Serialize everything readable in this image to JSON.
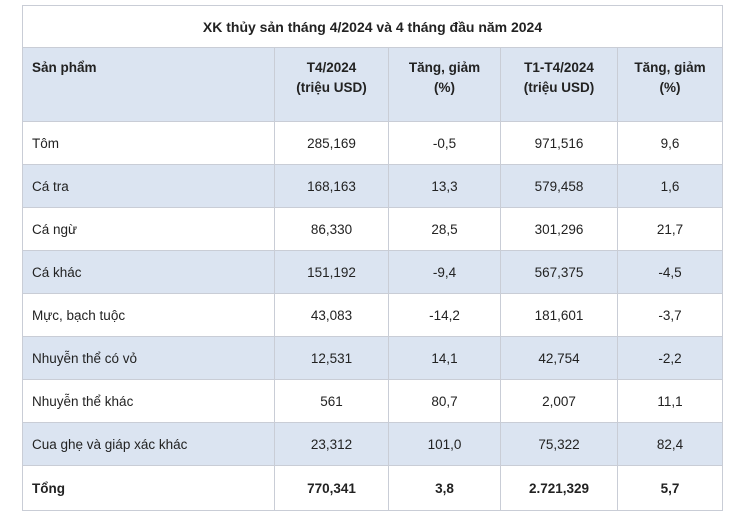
{
  "title": "XK thủy sản tháng 4/2024 và 4 tháng đầu năm 2024",
  "headers": [
    {
      "line1": "Sản phẩm",
      "line2": ""
    },
    {
      "line1": "T4/2024",
      "line2": "(triệu USD)"
    },
    {
      "line1": "Tăng, giảm",
      "line2": "(%)"
    },
    {
      "line1": "T1-T4/2024",
      "line2": "(triệu USD)"
    },
    {
      "line1": "Tăng, giảm",
      "line2": "(%)"
    }
  ],
  "rows": [
    [
      "Tôm",
      "285,169",
      "-0,5",
      "971,516",
      "9,6"
    ],
    [
      "Cá tra",
      "168,163",
      "13,3",
      "579,458",
      "1,6"
    ],
    [
      "Cá ngừ",
      "86,330",
      "28,5",
      "301,296",
      "21,7"
    ],
    [
      "Cá khác",
      "151,192",
      "-9,4",
      "567,375",
      "-4,5"
    ],
    [
      "Mực, bạch tuộc",
      "43,083",
      "-14,2",
      "181,601",
      "-3,7"
    ],
    [
      "Nhuyễn thể có vỏ",
      "12,531",
      "14,1",
      "42,754",
      "-2,2"
    ],
    [
      "Nhuyễn thể khác",
      "561",
      "80,7",
      "2,007",
      "11,1"
    ],
    [
      "Cua ghẹ và giáp xác khác",
      "23,312",
      "101,0",
      "75,322",
      "82,4"
    ]
  ],
  "total": [
    "Tổng",
    "770,341",
    "3,8",
    "2.721,329",
    "5,7"
  ]
}
